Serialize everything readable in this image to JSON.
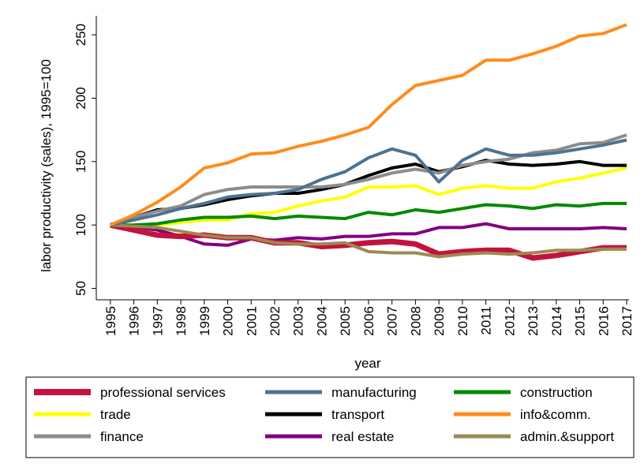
{
  "chart_data": {
    "type": "line",
    "x_label": "year",
    "y_label": "labor productivity (sales), 1995=100",
    "x": [
      1995,
      1996,
      1997,
      1998,
      1999,
      2000,
      2001,
      2002,
      2003,
      2004,
      2005,
      2006,
      2007,
      2008,
      2009,
      2010,
      2011,
      2012,
      2013,
      2014,
      2015,
      2016,
      2017
    ],
    "xlim": [
      1994.4,
      2017.1
    ],
    "xticks": [
      1995,
      1996,
      1997,
      1998,
      1999,
      2000,
      2001,
      2002,
      2003,
      2004,
      2005,
      2006,
      2007,
      2008,
      2009,
      2010,
      2011,
      2012,
      2013,
      2014,
      2015,
      2016,
      2017
    ],
    "ylim": [
      41,
      265
    ],
    "yticks": [
      50,
      100,
      150,
      200,
      250
    ],
    "series": [
      {
        "name": "professional services",
        "color": "#c4123e",
        "values": [
          100,
          96,
          92,
          91,
          92,
          90,
          90,
          86,
          86,
          83,
          84,
          86,
          87,
          85,
          77,
          79,
          80,
          80,
          74,
          76,
          79,
          82,
          82
        ]
      },
      {
        "name": "manufacturing",
        "color": "#4e7290",
        "values": [
          100,
          104,
          108,
          113,
          117,
          122,
          124,
          125,
          128,
          136,
          142,
          153,
          160,
          155,
          134,
          151,
          160,
          155,
          155,
          157,
          160,
          163,
          167
        ]
      },
      {
        "name": "construction",
        "color": "#008a00",
        "values": [
          100,
          100,
          101,
          104,
          106,
          106,
          107,
          105,
          107,
          106,
          105,
          110,
          108,
          112,
          110,
          113,
          116,
          115,
          113,
          116,
          115,
          117,
          117
        ]
      },
      {
        "name": "trade",
        "color": "#ffff00",
        "values": [
          100,
          100,
          100,
          102,
          104,
          104,
          109,
          110,
          115,
          119,
          122,
          130,
          130,
          131,
          124,
          129,
          131,
          129,
          129,
          134,
          137,
          141,
          145
        ]
      },
      {
        "name": "transport",
        "color": "#000000",
        "values": [
          100,
          106,
          112,
          113,
          116,
          120,
          123,
          125,
          125,
          128,
          132,
          139,
          145,
          148,
          142,
          146,
          151,
          148,
          147,
          148,
          150,
          147,
          147
        ]
      },
      {
        "name": "info&comm.",
        "color": "#ff8c1a",
        "values": [
          100,
          108,
          118,
          130,
          145,
          149,
          156,
          157,
          162,
          166,
          171,
          177,
          195,
          210,
          214,
          218,
          230,
          230,
          235,
          241,
          249,
          251,
          258
        ]
      },
      {
        "name": "finance",
        "color": "#8c8c8c",
        "values": [
          100,
          106,
          111,
          115,
          124,
          128,
          130,
          130,
          130,
          130,
          132,
          136,
          141,
          144,
          141,
          147,
          150,
          152,
          157,
          159,
          164,
          165,
          171
        ]
      },
      {
        "name": "real estate",
        "color": "#800080",
        "values": [
          100,
          99,
          96,
          91,
          85,
          84,
          89,
          88,
          90,
          89,
          91,
          91,
          93,
          93,
          98,
          98,
          101,
          97,
          97,
          97,
          97,
          98,
          97
        ]
      },
      {
        "name": "admin.&support",
        "color": "#9c8a50",
        "values": [
          100,
          99,
          98,
          95,
          92,
          90,
          90,
          86,
          85,
          85,
          86,
          79,
          78,
          78,
          75,
          77,
          78,
          77,
          78,
          80,
          80,
          81,
          81
        ]
      }
    ]
  }
}
